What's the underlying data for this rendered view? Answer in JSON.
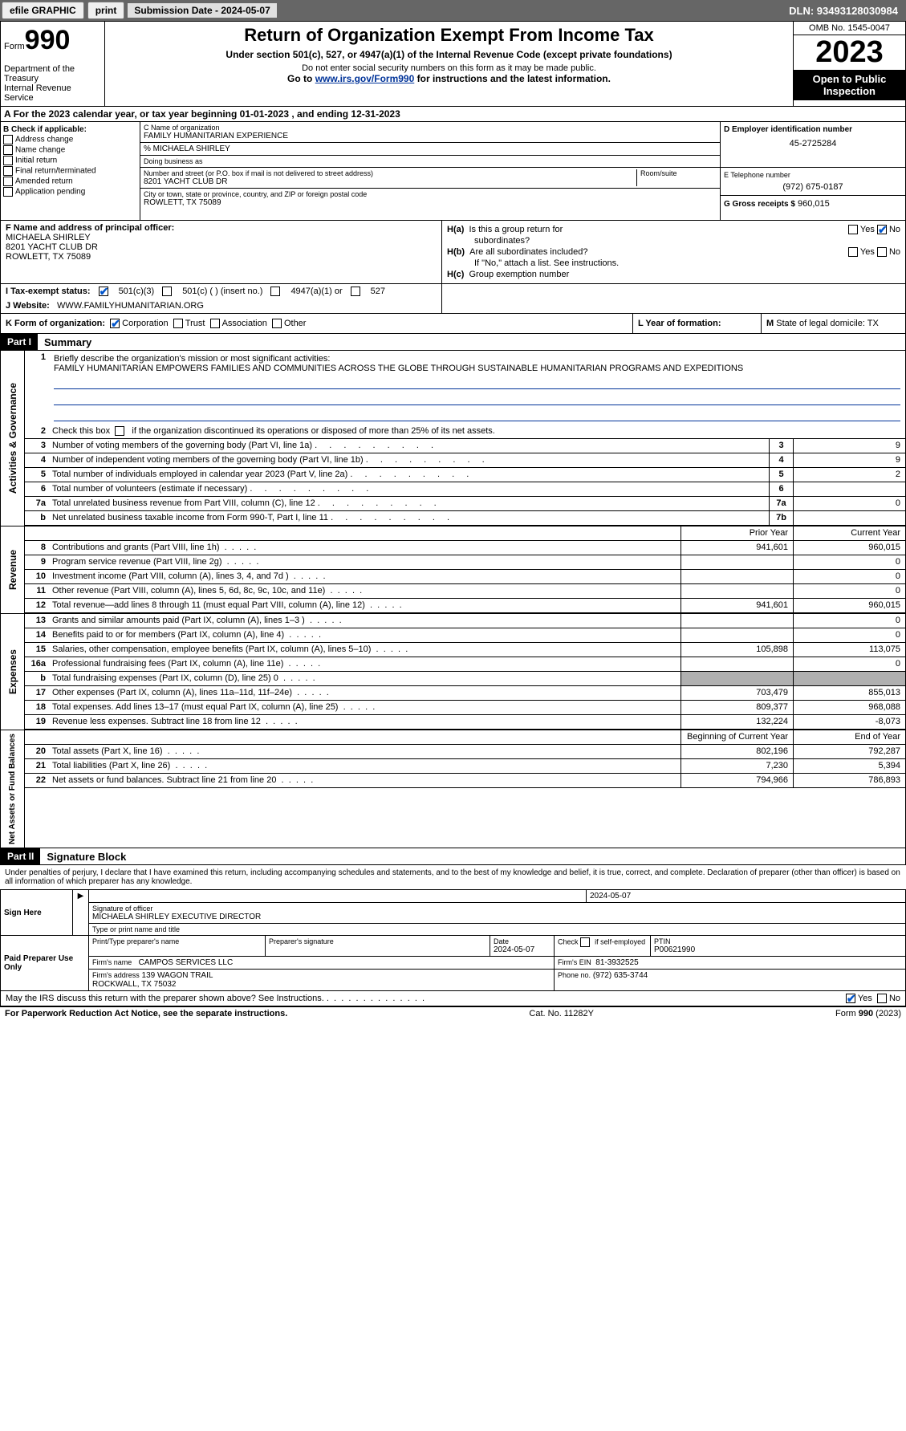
{
  "topbar": {
    "efile": "efile GRAPHIC",
    "print": "print",
    "submission": "Submission Date - 2024-05-07",
    "dln": "DLN: 93493128030984"
  },
  "header": {
    "form_label": "Form",
    "form_num": "990",
    "dept": "Department of the Treasury\nInternal Revenue Service",
    "title": "Return of Organization Exempt From Income Tax",
    "subtitle": "Under section 501(c), 527, or 4947(a)(1) of the Internal Revenue Code (except private foundations)",
    "note1": "Do not enter social security numbers on this form as it may be made public.",
    "note2_pre": "Go to ",
    "note2_link": "www.irs.gov/Form990",
    "note2_post": " for instructions and the latest information.",
    "omb": "OMB No. 1545-0047",
    "year": "2023",
    "open_public": "Open to Public Inspection"
  },
  "section_a": "For the 2023 calendar year, or tax year beginning 01-01-2023    , and ending 12-31-2023",
  "box_b": {
    "label": "B Check if applicable:",
    "items": [
      "Address change",
      "Name change",
      "Initial return",
      "Final return/terminated",
      "Amended return",
      "Application pending"
    ]
  },
  "box_c": {
    "name_label": "C Name of organization",
    "name": "FAMILY HUMANITARIAN EXPERIENCE",
    "care_of": "% MICHAELA SHIRLEY",
    "dba_label": "Doing business as",
    "dba": "",
    "street_label": "Number and street (or P.O. box if mail is not delivered to street address)",
    "street": "8201 YACHT CLUB DR",
    "room_label": "Room/suite",
    "city_label": "City or town, state or province, country, and ZIP or foreign postal code",
    "city": "ROWLETT, TX  75089"
  },
  "box_d": {
    "label": "D Employer identification number",
    "ein": "45-2725284"
  },
  "box_e": {
    "label": "E Telephone number",
    "phone": "(972) 675-0187"
  },
  "box_g": {
    "label": "G Gross receipts $",
    "amount": "960,015"
  },
  "box_f": {
    "label": "F  Name and address of principal officer:",
    "name": "MICHAELA SHIRLEY",
    "addr1": "8201 YACHT CLUB DR",
    "addr2": "ROWLETT, TX  75089"
  },
  "box_h": {
    "a_label": "H(a)  Is this a group return for subordinates?",
    "b_label": "H(b)  Are all subordinates included?",
    "b_note": "If \"No,\" attach a list. See instructions.",
    "c_label": "H(c)  Group exemption number"
  },
  "row_i": {
    "label": "I    Tax-exempt status:",
    "opts": [
      "501(c)(3)",
      "501(c) (  ) (insert no.)",
      "4947(a)(1) or",
      "527"
    ]
  },
  "row_j": {
    "label": "J   Website:",
    "url": "WWW.FAMILYHUMANITARIAN.ORG"
  },
  "row_k": {
    "label": "K Form of organization:",
    "opts": [
      "Corporation",
      "Trust",
      "Association",
      "Other"
    ],
    "l_label": "L Year of formation:",
    "m_label": "M State of legal domicile: TX"
  },
  "part1": {
    "header": "Part I",
    "title": "Summary",
    "line1_label": "Briefly describe the organization's mission or most significant activities:",
    "line1_text": "FAMILY HUMANITARIAN EMPOWERS FAMILIES AND COMMUNITIES ACROSS THE GLOBE THROUGH SUSTAINABLE HUMANITARIAN PROGRAMS AND EXPEDITIONS",
    "line2": "Check this box        if the organization discontinued its operations or disposed of more than 25% of its net assets.",
    "sections": {
      "gov": "Activities & Governance",
      "rev": "Revenue",
      "exp": "Expenses",
      "net": "Net Assets or Fund Balances"
    },
    "gov_lines": [
      {
        "n": "3",
        "d": "Number of voting members of the governing body (Part VI, line 1a)",
        "box": "3",
        "v": "9"
      },
      {
        "n": "4",
        "d": "Number of independent voting members of the governing body (Part VI, line 1b)",
        "box": "4",
        "v": "9"
      },
      {
        "n": "5",
        "d": "Total number of individuals employed in calendar year 2023 (Part V, line 2a)",
        "box": "5",
        "v": "2"
      },
      {
        "n": "6",
        "d": "Total number of volunteers (estimate if necessary)",
        "box": "6",
        "v": ""
      },
      {
        "n": "7a",
        "d": "Total unrelated business revenue from Part VIII, column (C), line 12",
        "box": "7a",
        "v": "0"
      },
      {
        "n": "b",
        "d": "Net unrelated business taxable income from Form 990-T, Part I, line 11",
        "box": "7b",
        "v": ""
      }
    ],
    "col_headers": {
      "prior": "Prior Year",
      "current": "Current Year"
    },
    "rev_lines": [
      {
        "n": "8",
        "d": "Contributions and grants (Part VIII, line 1h)",
        "p": "941,601",
        "c": "960,015"
      },
      {
        "n": "9",
        "d": "Program service revenue (Part VIII, line 2g)",
        "p": "",
        "c": "0"
      },
      {
        "n": "10",
        "d": "Investment income (Part VIII, column (A), lines 3, 4, and 7d )",
        "p": "",
        "c": "0"
      },
      {
        "n": "11",
        "d": "Other revenue (Part VIII, column (A), lines 5, 6d, 8c, 9c, 10c, and 11e)",
        "p": "",
        "c": "0"
      },
      {
        "n": "12",
        "d": "Total revenue—add lines 8 through 11 (must equal Part VIII, column (A), line 12)",
        "p": "941,601",
        "c": "960,015"
      }
    ],
    "exp_lines": [
      {
        "n": "13",
        "d": "Grants and similar amounts paid (Part IX, column (A), lines 1–3 )",
        "p": "",
        "c": "0"
      },
      {
        "n": "14",
        "d": "Benefits paid to or for members (Part IX, column (A), line 4)",
        "p": "",
        "c": "0"
      },
      {
        "n": "15",
        "d": "Salaries, other compensation, employee benefits (Part IX, column (A), lines 5–10)",
        "p": "105,898",
        "c": "113,075"
      },
      {
        "n": "16a",
        "d": "Professional fundraising fees (Part IX, column (A), line 11e)",
        "p": "",
        "c": "0"
      },
      {
        "n": "b",
        "d": "Total fundraising expenses (Part IX, column (D), line 25) 0",
        "p": "shaded",
        "c": "shaded"
      },
      {
        "n": "17",
        "d": "Other expenses (Part IX, column (A), lines 11a–11d, 11f–24e)",
        "p": "703,479",
        "c": "855,013"
      },
      {
        "n": "18",
        "d": "Total expenses. Add lines 13–17 (must equal Part IX, column (A), line 25)",
        "p": "809,377",
        "c": "968,088"
      },
      {
        "n": "19",
        "d": "Revenue less expenses. Subtract line 18 from line 12",
        "p": "132,224",
        "c": "-8,073"
      }
    ],
    "net_headers": {
      "begin": "Beginning of Current Year",
      "end": "End of Year"
    },
    "net_lines": [
      {
        "n": "20",
        "d": "Total assets (Part X, line 16)",
        "p": "802,196",
        "c": "792,287"
      },
      {
        "n": "21",
        "d": "Total liabilities (Part X, line 26)",
        "p": "7,230",
        "c": "5,394"
      },
      {
        "n": "22",
        "d": "Net assets or fund balances. Subtract line 21 from line 20",
        "p": "794,966",
        "c": "786,893"
      }
    ]
  },
  "part2": {
    "header": "Part II",
    "title": "Signature Block",
    "declaration": "Under penalties of perjury, I declare that I have examined this return, including accompanying schedules and statements, and to the best of my knowledge and belief, it is true, correct, and complete. Declaration of preparer (other than officer) is based on all information of which preparer has any knowledge.",
    "sign_here": "Sign Here",
    "sig_date": "2024-05-07",
    "sig_officer_label": "Signature of officer",
    "sig_officer": "MICHAELA SHIRLEY  EXECUTIVE DIRECTOR",
    "sig_type_label": "Type or print name and title",
    "date_label": "Date",
    "paid_prep": "Paid Preparer Use Only",
    "prep_name_label": "Print/Type preparer's name",
    "prep_sig_label": "Preparer's signature",
    "prep_date_label": "Date",
    "prep_date": "2024-05-07",
    "prep_check": "Check          if self-employed",
    "ptin_label": "PTIN",
    "ptin": "P00621990",
    "firm_name_label": "Firm's name",
    "firm_name": "CAMPOS SERVICES LLC",
    "firm_ein_label": "Firm's EIN",
    "firm_ein": "81-3932525",
    "firm_addr_label": "Firm's address",
    "firm_addr1": "139 WAGON TRAIL",
    "firm_addr2": "ROCKWALL, TX  75032",
    "firm_phone_label": "Phone no.",
    "firm_phone": "(972) 635-3744",
    "discuss": "May the IRS discuss this return with the preparer shown above? See Instructions."
  },
  "footer": {
    "left": "For Paperwork Reduction Act Notice, see the separate instructions.",
    "mid": "Cat. No. 11282Y",
    "right": "Form 990 (2023)"
  }
}
